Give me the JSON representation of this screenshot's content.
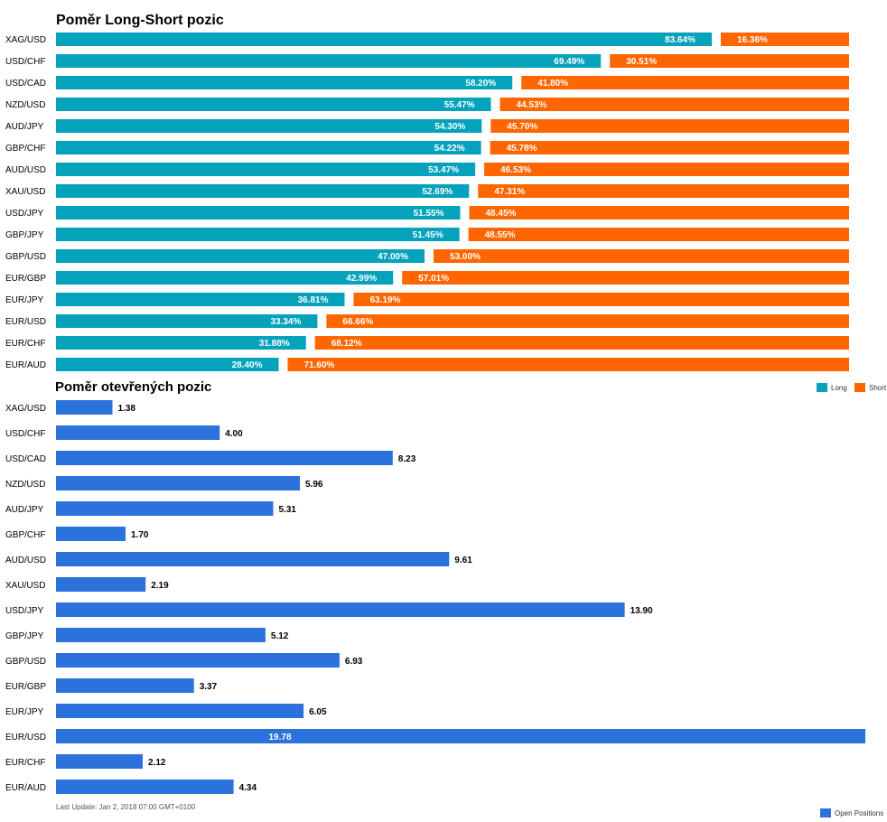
{
  "colors": {
    "long": "#05A2BB",
    "short": "#FF6600",
    "open": "#2B72DD"
  },
  "footer": {
    "last_update": "Last Update: Jan 2, 2018 07:00 GMT+0100"
  },
  "chart_data": [
    {
      "type": "bar",
      "stacked": true,
      "orientation": "horizontal",
      "title": "Poměr Long-Short pozic",
      "categories": [
        "XAG/USD",
        "USD/CHF",
        "USD/CAD",
        "NZD/USD",
        "AUD/JPY",
        "GBP/CHF",
        "AUD/USD",
        "XAU/USD",
        "USD/JPY",
        "GBP/JPY",
        "GBP/USD",
        "EUR/GBP",
        "EUR/JPY",
        "EUR/USD",
        "EUR/CHF",
        "EUR/AUD"
      ],
      "series": [
        {
          "name": "Long",
          "values": [
            83.64,
            69.49,
            58.2,
            55.47,
            54.3,
            54.22,
            53.47,
            52.69,
            51.55,
            51.45,
            47.0,
            42.99,
            36.81,
            33.34,
            31.88,
            28.4
          ],
          "labels": [
            "83.64%",
            "69.49%",
            "58.20%",
            "55.47%",
            "54.30%",
            "54.22%",
            "53.47%",
            "52.69%",
            "51.55%",
            "51.45%",
            "47.00%",
            "42.99%",
            "36.81%",
            "33.34%",
            "31.88%",
            "28.40%"
          ]
        },
        {
          "name": "Short",
          "values": [
            16.36,
            30.51,
            41.8,
            44.53,
            45.7,
            45.78,
            46.53,
            47.31,
            48.45,
            48.55,
            53.0,
            57.01,
            63.19,
            66.66,
            68.12,
            71.6
          ],
          "labels": [
            "16.36%",
            "30.51%",
            "41.80%",
            "44.53%",
            "45.70%",
            "45.78%",
            "46.53%",
            "47.31%",
            "48.45%",
            "48.55%",
            "53.00%",
            "57.01%",
            "63.19%",
            "66.66%",
            "68.12%",
            "71.60%"
          ]
        }
      ],
      "xlim": [
        0,
        100
      ],
      "legend": "bottom-right",
      "grid": false
    },
    {
      "type": "bar",
      "orientation": "horizontal",
      "title": "Poměr otevřených pozic",
      "categories": [
        "XAG/USD",
        "USD/CHF",
        "USD/CAD",
        "NZD/USD",
        "AUD/JPY",
        "GBP/CHF",
        "AUD/USD",
        "XAU/USD",
        "USD/JPY",
        "GBP/JPY",
        "GBP/USD",
        "EUR/GBP",
        "EUR/JPY",
        "EUR/USD",
        "EUR/CHF",
        "EUR/AUD"
      ],
      "series": [
        {
          "name": "Open Positions",
          "values": [
            1.38,
            4.0,
            8.23,
            5.96,
            5.31,
            1.7,
            9.61,
            2.19,
            13.9,
            5.12,
            6.93,
            3.37,
            6.05,
            19.78,
            2.12,
            4.34
          ],
          "labels": [
            "1.38",
            "4.00",
            "8.23",
            "5.96",
            "5.31",
            "1.70",
            "9.61",
            "2.19",
            "13.90",
            "5.12",
            "6.93",
            "3.37",
            "6.05",
            "19.78",
            "2.12",
            "4.34"
          ]
        }
      ],
      "xlim": [
        0,
        19.78
      ],
      "legend": "bottom-right",
      "grid": false
    }
  ]
}
